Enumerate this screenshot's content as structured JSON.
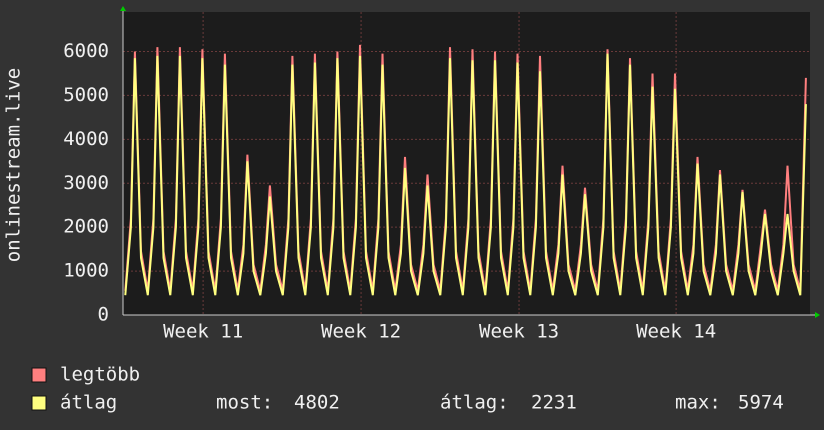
{
  "chart_data": {
    "type": "line",
    "ylabel": "onlinestream.live",
    "x": [
      0.1,
      0.35,
      0.53,
      0.8,
      1.1,
      1.35,
      1.53,
      1.8,
      2.1,
      2.35,
      2.53,
      2.8,
      3.1,
      3.35,
      3.53,
      3.8,
      4.1,
      4.35,
      4.53,
      4.8,
      5.1,
      5.35,
      5.53,
      5.8,
      6.1,
      6.35,
      6.53,
      6.8,
      7.1,
      7.35,
      7.53,
      7.8,
      8.1,
      8.35,
      8.53,
      8.8,
      9.1,
      9.35,
      9.53,
      9.8,
      10.1,
      10.35,
      10.53,
      10.8,
      11.1,
      11.35,
      11.53,
      11.8,
      12.1,
      12.35,
      12.53,
      12.8,
      13.1,
      13.35,
      13.53,
      13.8,
      14.1,
      14.35,
      14.53,
      14.8,
      15.1,
      15.35,
      15.53,
      15.8,
      16.1,
      16.35,
      16.53,
      16.8,
      17.1,
      17.35,
      17.53,
      17.8,
      18.1,
      18.35,
      18.53,
      18.8,
      19.1,
      19.35,
      19.53,
      19.8,
      20.1,
      20.35,
      20.53,
      20.8,
      21.1,
      21.35,
      21.53,
      21.8,
      22.1,
      22.35,
      22.53,
      22.8,
      23.1,
      23.35,
      23.53,
      23.8,
      24.1,
      24.35,
      24.53,
      24.8,
      25.1,
      25.35,
      25.53,
      25.8,
      26.1,
      26.35,
      26.53,
      26.8,
      27.1,
      27.35,
      27.53,
      27.8,
      28.1,
      28.35,
      28.53,
      28.8,
      29.1,
      29.35,
      29.53,
      29.8,
      30.1,
      30.35
    ],
    "series": [
      {
        "name": "legtöbb",
        "color": "#ff7f7f",
        "values": [
          550,
          2200,
          6000,
          1450,
          550,
          2200,
          6100,
          1450,
          550,
          2200,
          6100,
          1450,
          550,
          2200,
          6050,
          1450,
          550,
          2200,
          5950,
          1450,
          550,
          1600,
          3650,
          1150,
          550,
          1600,
          2950,
          1150,
          550,
          2200,
          5900,
          1450,
          550,
          2200,
          5950,
          1450,
          550,
          2200,
          6000,
          1450,
          550,
          2200,
          6150,
          1450,
          550,
          2200,
          5950,
          1450,
          550,
          1600,
          3600,
          1150,
          550,
          1600,
          3200,
          1150,
          550,
          2200,
          6100,
          1450,
          550,
          2200,
          6050,
          1450,
          550,
          2200,
          6000,
          1450,
          550,
          2200,
          5950,
          1450,
          550,
          2200,
          5900,
          1450,
          550,
          1600,
          3400,
          1150,
          550,
          1600,
          2900,
          1150,
          550,
          2200,
          6050,
          1450,
          550,
          2200,
          5850,
          1450,
          550,
          2200,
          5500,
          1450,
          550,
          2200,
          5500,
          1450,
          550,
          1600,
          3600,
          1150,
          550,
          1600,
          3300,
          1150,
          550,
          1600,
          2850,
          1150,
          550,
          1600,
          2400,
          1150,
          550,
          1600,
          3400,
          1150,
          550,
          5400
        ]
      },
      {
        "name": "átlag",
        "color": "#ffff80",
        "values": [
          450,
          2000,
          5850,
          1300,
          450,
          2000,
          5900,
          1300,
          450,
          2000,
          5900,
          1300,
          450,
          2000,
          5850,
          1300,
          450,
          2000,
          5700,
          1300,
          450,
          1400,
          3500,
          1000,
          450,
          1400,
          2700,
          1000,
          450,
          2000,
          5700,
          1300,
          450,
          2000,
          5750,
          1300,
          450,
          2000,
          5850,
          1300,
          450,
          2000,
          5900,
          1300,
          450,
          2000,
          5700,
          1300,
          450,
          1400,
          3350,
          1000,
          450,
          1400,
          2950,
          1000,
          450,
          2000,
          5850,
          1300,
          450,
          2000,
          5800,
          1300,
          450,
          2000,
          5800,
          1300,
          450,
          2000,
          5750,
          1300,
          450,
          2000,
          5550,
          1300,
          450,
          1400,
          3200,
          1000,
          450,
          1400,
          2750,
          1000,
          450,
          2000,
          5950,
          1300,
          450,
          2000,
          5700,
          1300,
          450,
          2000,
          5200,
          1300,
          450,
          2000,
          5150,
          1300,
          450,
          1400,
          3450,
          1000,
          450,
          1400,
          3200,
          1000,
          450,
          1400,
          2800,
          1000,
          450,
          1400,
          2300,
          1000,
          450,
          1400,
          2300,
          1000,
          450,
          4802
        ]
      }
    ],
    "xlim": [
      0,
      30.53
    ],
    "xticks": [
      {
        "value": 3.56,
        "label": "Week 11"
      },
      {
        "value": 10.58,
        "label": "Week 12"
      },
      {
        "value": 17.6,
        "label": "Week 13"
      },
      {
        "value": 24.58,
        "label": "Week 14"
      }
    ],
    "ylim": [
      0,
      6900
    ],
    "yticks": [
      0,
      1000,
      2000,
      3000,
      4000,
      5000,
      6000
    ],
    "grid": true,
    "stats": [
      {
        "label": "most:",
        "value": 4802
      },
      {
        "label": "átlag:",
        "value": 2231
      },
      {
        "label": "max:",
        "value": 5974
      }
    ]
  }
}
